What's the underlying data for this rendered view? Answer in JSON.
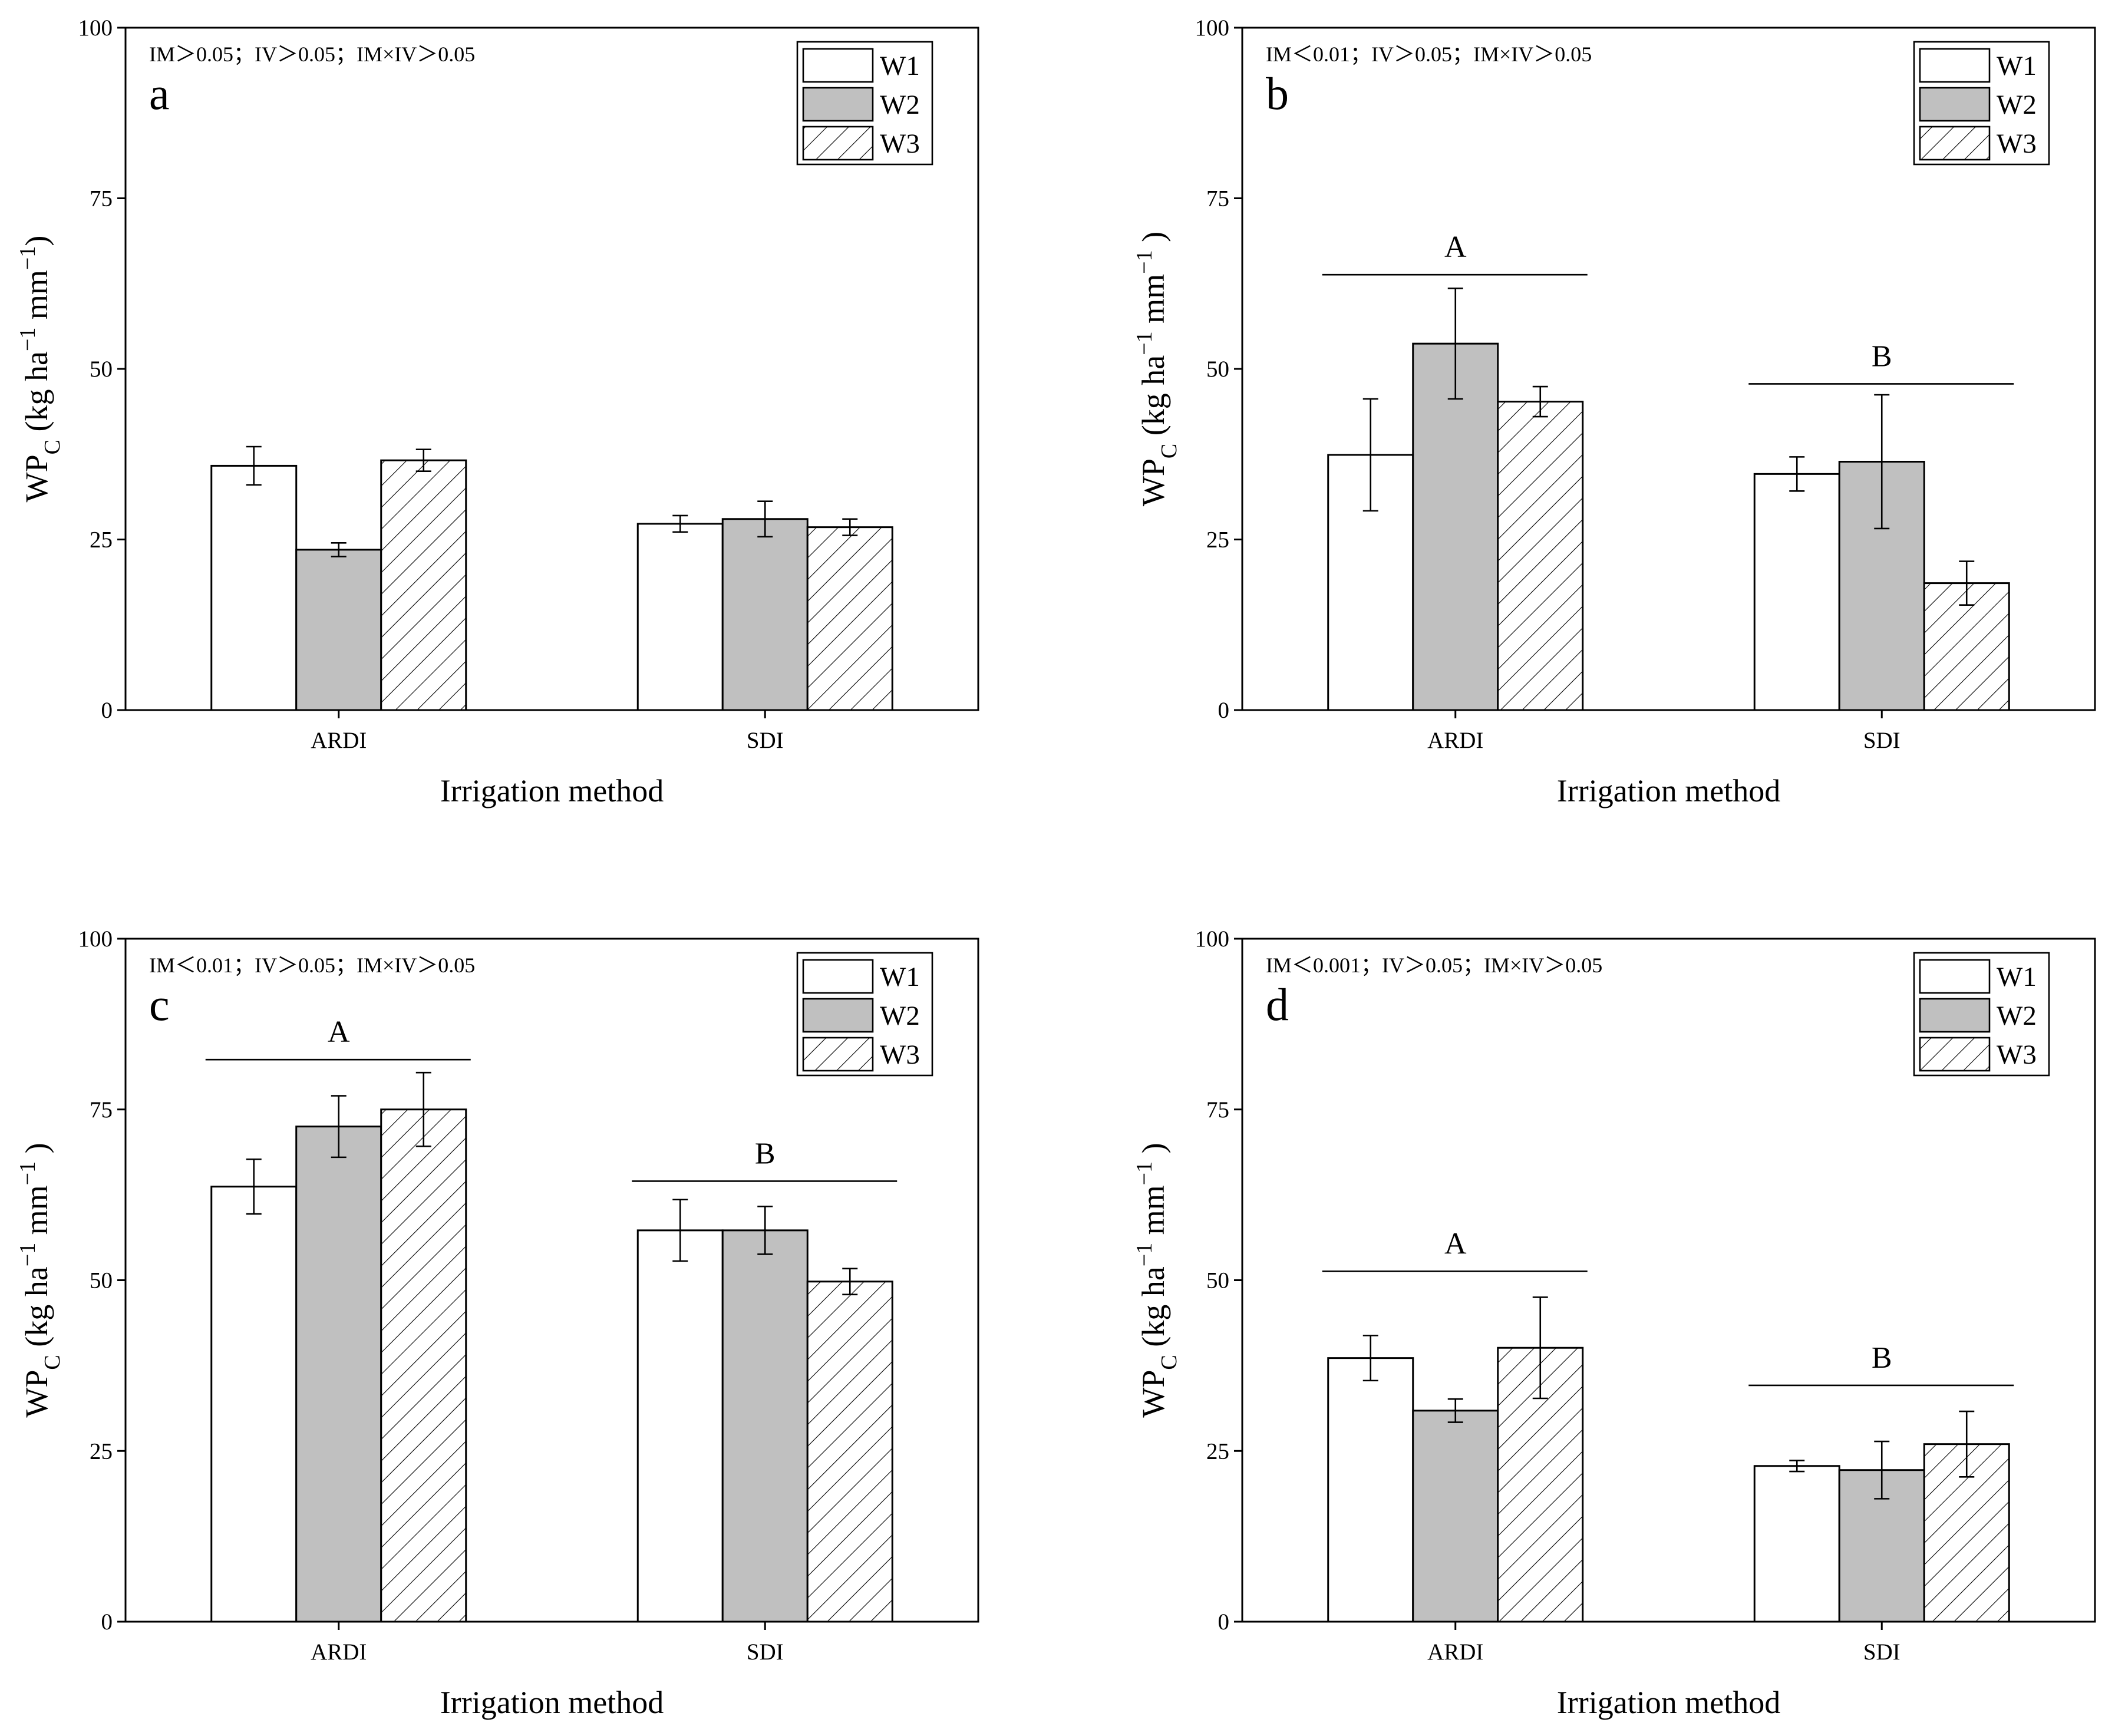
{
  "colors": {
    "W1": "#ffffff",
    "W2": "#c0c0c0",
    "W3": "#ffffff",
    "axis": "#000000"
  },
  "icons": {
    "W3_fill": "diagonal-hatch-pattern"
  },
  "chart_data": [
    {
      "type": "bar",
      "panel": "a",
      "stats": "IM＞0.05；IV＞0.05；IM×IV＞0.05",
      "xlabel": "Irrigation method",
      "ylabel_main": "WP",
      "ylabel_sub": "C",
      "ylabel_units": " (kg ha",
      "ylabel_exp1": "−1",
      "ylabel_mm": " mm",
      "ylabel_exp2": "−1",
      "ylabel_close": ")",
      "ylim": [
        0,
        100
      ],
      "yticks": [
        0,
        25,
        50,
        75,
        100
      ],
      "categories": [
        "ARDI",
        "SDI"
      ],
      "legend": [
        "W1",
        "W2",
        "W3"
      ],
      "legend_position": "top-right",
      "series": [
        {
          "name": "W1",
          "values": [
            35.8,
            27.3
          ],
          "errors": [
            2.8,
            1.2
          ]
        },
        {
          "name": "W2",
          "values": [
            23.5,
            28.0
          ],
          "errors": [
            1.0,
            2.6
          ]
        },
        {
          "name": "W3",
          "values": [
            36.6,
            26.8
          ],
          "errors": [
            1.6,
            1.2
          ]
        }
      ],
      "significance": []
    },
    {
      "type": "bar",
      "panel": "b",
      "stats": "IM＜0.01；IV＞0.05；IM×IV＞0.05",
      "xlabel": "Irrigation method",
      "ylabel_main": "WP",
      "ylabel_sub": "C",
      "ylabel_units": " (kg ha",
      "ylabel_exp1": "−1",
      "ylabel_mm": " mm",
      "ylabel_exp2": "−1",
      "ylabel_close": " )",
      "ylim": [
        0,
        100
      ],
      "yticks": [
        0,
        25,
        50,
        75,
        100
      ],
      "categories": [
        "ARDI",
        "SDI"
      ],
      "legend": [
        "W1",
        "W2",
        "W3"
      ],
      "legend_position": "top-right",
      "series": [
        {
          "name": "W1",
          "values": [
            37.4,
            34.6
          ],
          "errors": [
            8.2,
            2.5
          ]
        },
        {
          "name": "W2",
          "values": [
            53.7,
            36.4
          ],
          "errors": [
            8.1,
            9.8
          ]
        },
        {
          "name": "W3",
          "values": [
            45.2,
            18.6
          ],
          "errors": [
            2.2,
            3.2
          ]
        }
      ],
      "significance": [
        {
          "category": "ARDI",
          "letter": "A",
          "line_value": 63.8
        },
        {
          "category": "SDI",
          "letter": "B",
          "line_value": 47.8
        }
      ]
    },
    {
      "type": "bar",
      "panel": "c",
      "stats": "IM＜0.01；IV＞0.05；IM×IV＞0.05",
      "xlabel": "Irrigation method",
      "ylabel_main": "WP",
      "ylabel_sub": "C",
      "ylabel_units": " (kg ha",
      "ylabel_exp1": "−1",
      "ylabel_mm": " mm",
      "ylabel_exp2": "−1",
      "ylabel_close": " )",
      "ylim": [
        0,
        100
      ],
      "yticks": [
        0,
        25,
        50,
        75,
        100
      ],
      "categories": [
        "ARDI",
        "SDI"
      ],
      "legend": [
        "W1",
        "W2",
        "W3"
      ],
      "legend_position": "top-right",
      "series": [
        {
          "name": "W1",
          "values": [
            63.7,
            57.3
          ],
          "errors": [
            4.0,
            4.5
          ]
        },
        {
          "name": "W2",
          "values": [
            72.5,
            57.3
          ],
          "errors": [
            4.5,
            3.5
          ]
        },
        {
          "name": "W3",
          "values": [
            75.0,
            49.8
          ],
          "errors": [
            5.4,
            1.9
          ]
        }
      ],
      "significance": [
        {
          "category": "ARDI",
          "letter": "A",
          "line_value": 82.3
        },
        {
          "category": "SDI",
          "letter": "B",
          "line_value": 64.5
        }
      ]
    },
    {
      "type": "bar",
      "panel": "d",
      "stats": "IM＜0.001；IV＞0.05；IM×IV＞0.05",
      "xlabel": "Irrigation method",
      "ylabel_main": "WP",
      "ylabel_sub": "C",
      "ylabel_units": " (kg ha",
      "ylabel_exp1": "−1",
      "ylabel_mm": " mm",
      "ylabel_exp2": "−1",
      "ylabel_close": " )",
      "ylim": [
        0,
        100
      ],
      "yticks": [
        0,
        25,
        50,
        75,
        100
      ],
      "categories": [
        "ARDI",
        "SDI"
      ],
      "legend": [
        "W1",
        "W2",
        "W3"
      ],
      "legend_position": "top-right",
      "series": [
        {
          "name": "W1",
          "values": [
            38.6,
            22.8
          ],
          "errors": [
            3.3,
            0.8
          ]
        },
        {
          "name": "W2",
          "values": [
            30.9,
            22.2
          ],
          "errors": [
            1.7,
            4.2
          ]
        },
        {
          "name": "W3",
          "values": [
            40.1,
            26.0
          ],
          "errors": [
            7.4,
            4.8
          ]
        }
      ],
      "significance": [
        {
          "category": "ARDI",
          "letter": "A",
          "line_value": 51.3
        },
        {
          "category": "SDI",
          "letter": "B",
          "line_value": 34.6
        }
      ]
    }
  ]
}
